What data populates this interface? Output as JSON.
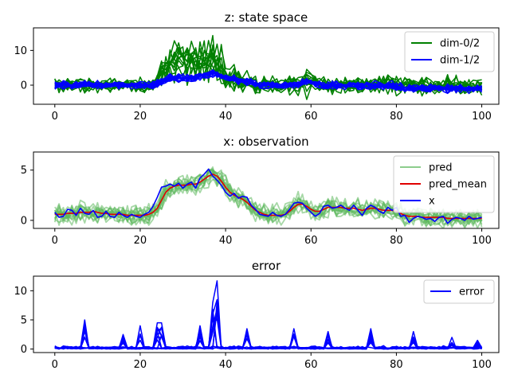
{
  "figure": {
    "background": "#ffffff"
  },
  "chart_data": [
    {
      "type": "line",
      "title": "z: state space",
      "xlim": [
        -5,
        104
      ],
      "ylim": [
        -5.5,
        16.5
      ],
      "xticks": [
        0,
        20,
        40,
        60,
        80,
        100
      ],
      "yticks": [
        0,
        10
      ],
      "legend": {
        "placement": "top-right",
        "entries": [
          {
            "label": "dim-0/2",
            "color": "#008000"
          },
          {
            "label": "dim-1/2",
            "color": "#0000ff"
          }
        ]
      },
      "series": [
        {
          "name": "dim-0/2",
          "color": "#008000",
          "style": "many-sample-lines",
          "values": [
            0,
            0,
            0,
            0,
            0,
            0,
            0,
            0,
            0,
            0,
            0,
            0,
            0,
            0,
            0,
            0,
            0,
            0,
            0,
            0,
            0,
            0,
            0,
            0,
            1,
            4,
            5,
            6,
            6,
            7,
            7,
            6,
            7,
            7,
            7,
            8,
            8,
            8,
            6,
            5,
            2,
            2,
            2,
            1,
            1,
            1,
            1,
            0,
            0,
            0,
            0,
            0,
            0,
            0,
            0,
            0,
            0,
            0,
            1,
            1,
            1,
            1,
            0,
            0,
            0,
            0,
            0,
            0,
            0,
            0,
            0,
            0,
            0,
            0,
            0,
            0,
            0,
            0,
            0,
            0,
            0,
            0,
            0,
            0,
            0,
            0,
            0,
            0,
            0,
            0,
            0,
            0,
            0,
            0,
            0,
            -1,
            -1,
            -1,
            -1,
            -1,
            -1
          ],
          "spread": [
            1.5,
            1.5,
            1.5,
            1.5,
            1.5,
            1.5,
            1.5,
            1.5,
            1.5,
            1.5,
            1.5,
            1.5,
            1.5,
            1.5,
            1.5,
            1.5,
            1.5,
            1.5,
            1.5,
            1.5,
            1.5,
            1.5,
            1.5,
            1.5,
            2,
            3,
            4,
            4,
            5,
            4,
            4,
            5,
            4,
            5,
            5,
            6,
            5,
            6,
            6,
            5,
            3,
            3,
            3,
            3,
            3,
            2,
            2,
            2,
            2,
            2,
            2,
            2,
            2,
            2,
            2,
            2,
            2,
            2,
            2,
            3,
            3,
            2,
            2,
            2,
            2,
            2,
            2,
            2,
            2,
            2,
            2,
            2,
            2,
            2,
            2,
            2,
            2,
            2,
            2,
            2,
            2,
            2,
            2,
            2,
            2,
            2,
            2,
            2,
            2,
            2,
            2,
            2,
            2,
            2,
            2,
            2,
            2,
            2,
            2,
            2,
            2
          ]
        },
        {
          "name": "dim-1/2",
          "color": "#0000ff",
          "style": "many-sample-lines",
          "values": [
            0,
            0,
            0,
            0,
            0,
            0,
            0,
            0,
            0,
            0,
            0,
            0,
            0,
            0,
            0,
            0,
            0,
            0,
            0,
            0,
            0,
            0,
            0,
            0,
            0.5,
            1,
            1.5,
            2,
            2,
            2,
            2,
            2,
            2,
            2,
            2.5,
            3,
            3,
            3.5,
            3,
            2.5,
            2,
            2,
            2,
            1.5,
            1.5,
            1,
            1,
            0.5,
            0,
            0,
            0,
            0,
            0,
            0,
            0,
            0,
            0,
            0.5,
            1,
            1,
            1,
            0.5,
            0,
            0,
            0,
            0,
            0,
            0,
            0,
            0,
            0,
            0,
            0,
            0,
            0,
            0,
            0,
            0,
            0,
            0,
            -0.5,
            -0.5,
            -1,
            -1,
            -1,
            -1,
            -1,
            -1,
            -1,
            -1,
            -1,
            -1,
            -1,
            -1,
            -1,
            -1,
            -1,
            -1,
            -1,
            -1,
            -1
          ],
          "spread": 0.9
        }
      ]
    },
    {
      "type": "line",
      "title": "x: observation",
      "xlim": [
        -5,
        104
      ],
      "ylim": [
        -0.8,
        6.8
      ],
      "xticks": [
        0,
        20,
        40,
        60,
        80,
        100
      ],
      "yticks": [
        0,
        5
      ],
      "legend": {
        "placement": "top-right",
        "entries": [
          {
            "label": "pred",
            "color": "#5cb85c"
          },
          {
            "label": "pred_mean",
            "color": "#e00000"
          },
          {
            "label": "x",
            "color": "#0000ff"
          }
        ]
      },
      "series": [
        {
          "name": "x",
          "color": "#0000ff",
          "values": [
            0.8,
            0.3,
            0.4,
            1.1,
            1.0,
            0.5,
            1.2,
            0.7,
            0.6,
            1.0,
            0.3,
            0.4,
            0.9,
            0.4,
            0.3,
            0.8,
            0.5,
            0.3,
            0.6,
            0.4,
            0.3,
            0.6,
            0.8,
            1.4,
            2.3,
            3.3,
            3.4,
            3.6,
            3.4,
            3.7,
            3.2,
            3.6,
            3.8,
            3.2,
            4.2,
            4.6,
            5.1,
            4.4,
            4.0,
            3.5,
            2.8,
            2.4,
            2.7,
            2.2,
            2.4,
            2.3,
            1.5,
            1.1,
            0.6,
            0.5,
            0.4,
            0.8,
            0.5,
            0.4,
            0.6,
            1.1,
            1.7,
            1.8,
            1.7,
            1.2,
            0.8,
            0.4,
            0.7,
            1.4,
            1.5,
            1.2,
            1.3,
            1.5,
            1.2,
            1.0,
            1.5,
            1.0,
            0.5,
            1.2,
            1.5,
            1.3,
            0.9,
            0.7,
            1.3,
            1.0,
            1.3,
            0.4,
            0.5,
            -0.2,
            0.2,
            0.4,
            0.3,
            0.1,
            0.2,
            -0.1,
            0.3,
            0.4,
            -0.3,
            0.1,
            0.3,
            0.2,
            0.0,
            0.4,
            0.1,
            0.2,
            0.3
          ]
        },
        {
          "name": "pred_mean",
          "color": "#e00000",
          "values": [
            0.6,
            0.6,
            0.6,
            0.7,
            0.7,
            0.7,
            0.8,
            0.8,
            0.8,
            0.9,
            0.8,
            0.7,
            0.7,
            0.6,
            0.6,
            0.6,
            0.6,
            0.5,
            0.5,
            0.5,
            0.5,
            0.5,
            0.6,
            0.8,
            1.2,
            2.0,
            2.8,
            3.2,
            3.4,
            3.5,
            3.5,
            3.5,
            3.6,
            3.6,
            3.8,
            4.1,
            4.4,
            4.6,
            4.4,
            3.9,
            3.3,
            2.8,
            2.5,
            2.3,
            2.1,
            1.8,
            1.4,
            1.0,
            0.8,
            0.6,
            0.5,
            0.5,
            0.5,
            0.5,
            0.6,
            0.9,
            1.3,
            1.6,
            1.6,
            1.4,
            1.1,
            0.9,
            0.9,
            1.1,
            1.3,
            1.3,
            1.3,
            1.3,
            1.2,
            1.2,
            1.2,
            1.1,
            1.0,
            1.1,
            1.2,
            1.2,
            1.1,
            1.0,
            1.0,
            1.0,
            0.9,
            0.7,
            0.5,
            0.4,
            0.4,
            0.4,
            0.3,
            0.3,
            0.3,
            0.3,
            0.3,
            0.3,
            0.2,
            0.2,
            0.2,
            0.2,
            0.2,
            0.2,
            0.2,
            0.2,
            0.2
          ]
        },
        {
          "name": "pred",
          "color": "#5cb85c",
          "style": "many-sample-lines",
          "spread": 0.8
        }
      ]
    },
    {
      "type": "line",
      "title": "error",
      "xlim": [
        -5,
        104
      ],
      "ylim": [
        -0.6,
        12.5
      ],
      "xticks": [
        0,
        20,
        40,
        60,
        80,
        100
      ],
      "yticks": [
        0,
        5,
        10
      ],
      "legend": {
        "placement": "top-right",
        "entries": [
          {
            "label": "error",
            "color": "#0000ff"
          }
        ]
      },
      "series": [
        {
          "name": "error",
          "color": "#0000ff",
          "style": "many-sample-lines",
          "spikes": [
            {
              "x": 7,
              "value": 5
            },
            {
              "x": 16,
              "value": 2.5
            },
            {
              "x": 20,
              "value": 4
            },
            {
              "x": 24,
              "value": 4.5
            },
            {
              "x": 25,
              "value": 4.5
            },
            {
              "x": 34,
              "value": 4
            },
            {
              "x": 37,
              "value": 8
            },
            {
              "x": 38,
              "value": 11.7
            },
            {
              "x": 45,
              "value": 3.5
            },
            {
              "x": 56,
              "value": 3.5
            },
            {
              "x": 64,
              "value": 3
            },
            {
              "x": 74,
              "value": 3.5
            },
            {
              "x": 84,
              "value": 3
            },
            {
              "x": 93,
              "value": 2
            },
            {
              "x": 99,
              "value": 1.5
            }
          ]
        }
      ]
    }
  ]
}
